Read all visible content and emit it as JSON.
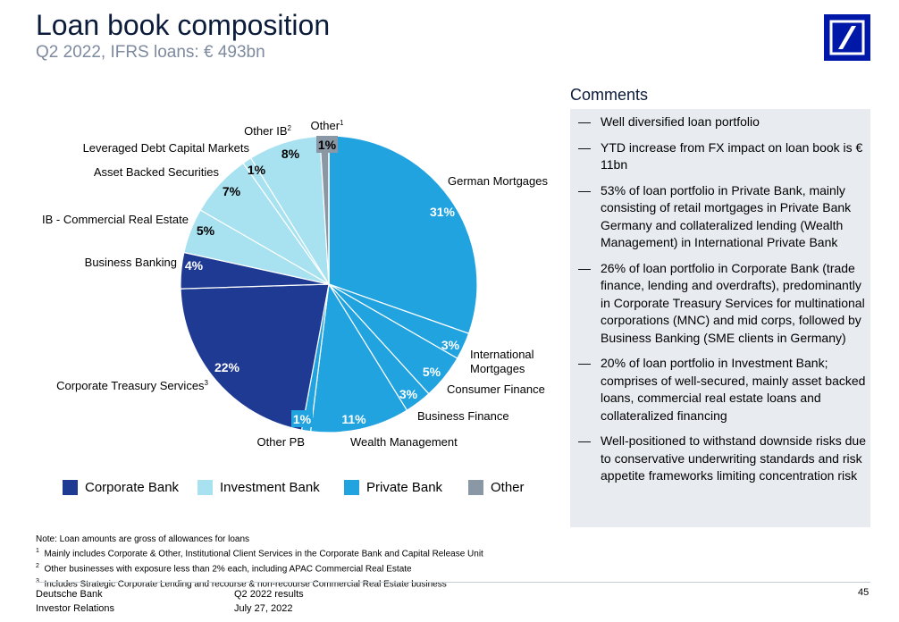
{
  "header": {
    "title": "Loan book composition",
    "subtitle": "Q2 2022, IFRS loans: € 493bn"
  },
  "colors": {
    "corporate": "#1f3a93",
    "investment": "#a8e2f0",
    "private": "#21a3df",
    "other": "#8a98a6",
    "logo": "#0018a8"
  },
  "chart_data": {
    "type": "pie",
    "title": "Loan book composition",
    "start": "12 o'clock, clockwise",
    "slices": [
      {
        "label": "German Mortgages",
        "value": 31,
        "display": "31%",
        "group": "private"
      },
      {
        "label": "International Mortgages",
        "value": 3,
        "display": "3%",
        "group": "private"
      },
      {
        "label": "Consumer Finance",
        "value": 5,
        "display": "5%",
        "group": "private"
      },
      {
        "label": "Business Finance",
        "value": 3,
        "display": "3%",
        "group": "private"
      },
      {
        "label": "Wealth Management",
        "value": 11,
        "display": "11%",
        "group": "private"
      },
      {
        "label": "Other PB",
        "value": 1,
        "display": "1%",
        "group": "private"
      },
      {
        "label": "Corporate Treasury Services",
        "value": 22,
        "display": "22%",
        "group": "corporate",
        "footnote": "3"
      },
      {
        "label": "Business Banking",
        "value": 4,
        "display": "4%",
        "group": "corporate"
      },
      {
        "label": "IB - Commercial Real Estate",
        "value": 5,
        "display": "5%",
        "group": "investment"
      },
      {
        "label": "Asset Backed Securities",
        "value": 7,
        "display": "7%",
        "group": "investment"
      },
      {
        "label": "Leveraged Debt Capital Markets",
        "value": 1,
        "display": "1%",
        "group": "investment"
      },
      {
        "label": "Other IB",
        "value": 8,
        "display": "8%",
        "group": "investment",
        "footnote": "2"
      },
      {
        "label": "Other",
        "value": 1,
        "display": "1%",
        "group": "other",
        "footnote": "1"
      }
    ],
    "legend": [
      {
        "key": "corporate",
        "label": "Corporate Bank"
      },
      {
        "key": "investment",
        "label": "Investment Bank"
      },
      {
        "key": "private",
        "label": "Private Bank"
      },
      {
        "key": "other",
        "label": "Other"
      }
    ]
  },
  "comments": {
    "title": "Comments",
    "dash": "—",
    "items": [
      "Well diversified loan portfolio",
      "YTD increase from FX impact on loan book is € 11bn",
      "53% of loan portfolio in Private Bank, mainly consisting of retail mortgages in Private Bank Germany and collateralized lending (Wealth Management) in International Private Bank",
      "26% of loan portfolio in Corporate Bank (trade finance, lending and overdrafts), predominantly in Corporate Treasury Services for multinational corporations (MNC) and mid corps, followed by Business Banking (SME clients in Germany)",
      "20% of loan portfolio in Investment Bank; comprises of well-secured, mainly asset backed loans, commercial real estate loans and collateralized financing",
      "Well-positioned to withstand downside risks due to conservative underwriting standards and risk appetite frameworks limiting concentration risk"
    ]
  },
  "notes": {
    "main": "Note: Loan amounts are gross of allowances for loans",
    "fn": [
      {
        "num": "1",
        "text": "Mainly includes Corporate & Other, Institutional Client Services in the Corporate Bank and Capital Release Unit"
      },
      {
        "num": "2",
        "text": "Other businesses with exposure less than 2% each, including APAC Commercial Real Estate"
      },
      {
        "num": "3",
        "text": "Includes Strategic Corporate Lending and recourse & non-recourse Commercial Real Estate business"
      }
    ]
  },
  "footer": {
    "org_line1": "Deutsche Bank",
    "org_line2": "Investor Relations",
    "doc_line1": "Q2 2022 results",
    "doc_line2": "July 27, 2022",
    "page": "45"
  }
}
